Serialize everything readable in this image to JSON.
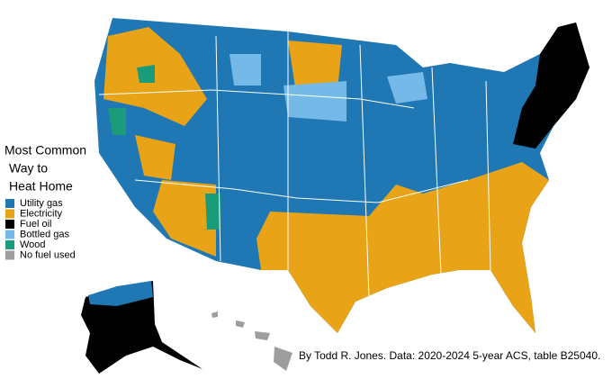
{
  "title_lines": [
    "Most Common",
    "Way to",
    "Heat Home"
  ],
  "legend": [
    {
      "label": "Utility gas",
      "color": "#1f77b4"
    },
    {
      "label": "Electricity",
      "color": "#e8a317"
    },
    {
      "label": "Fuel oil",
      "color": "#000000"
    },
    {
      "label": "Bottled gas",
      "color": "#74b9e8"
    },
    {
      "label": "Wood",
      "color": "#1a9c7a"
    },
    {
      "label": "No fuel used",
      "color": "#9e9e9e"
    }
  ],
  "credit": "By Todd R. Jones. Data: 2020-2024 5-year ACS, table B25040."
}
